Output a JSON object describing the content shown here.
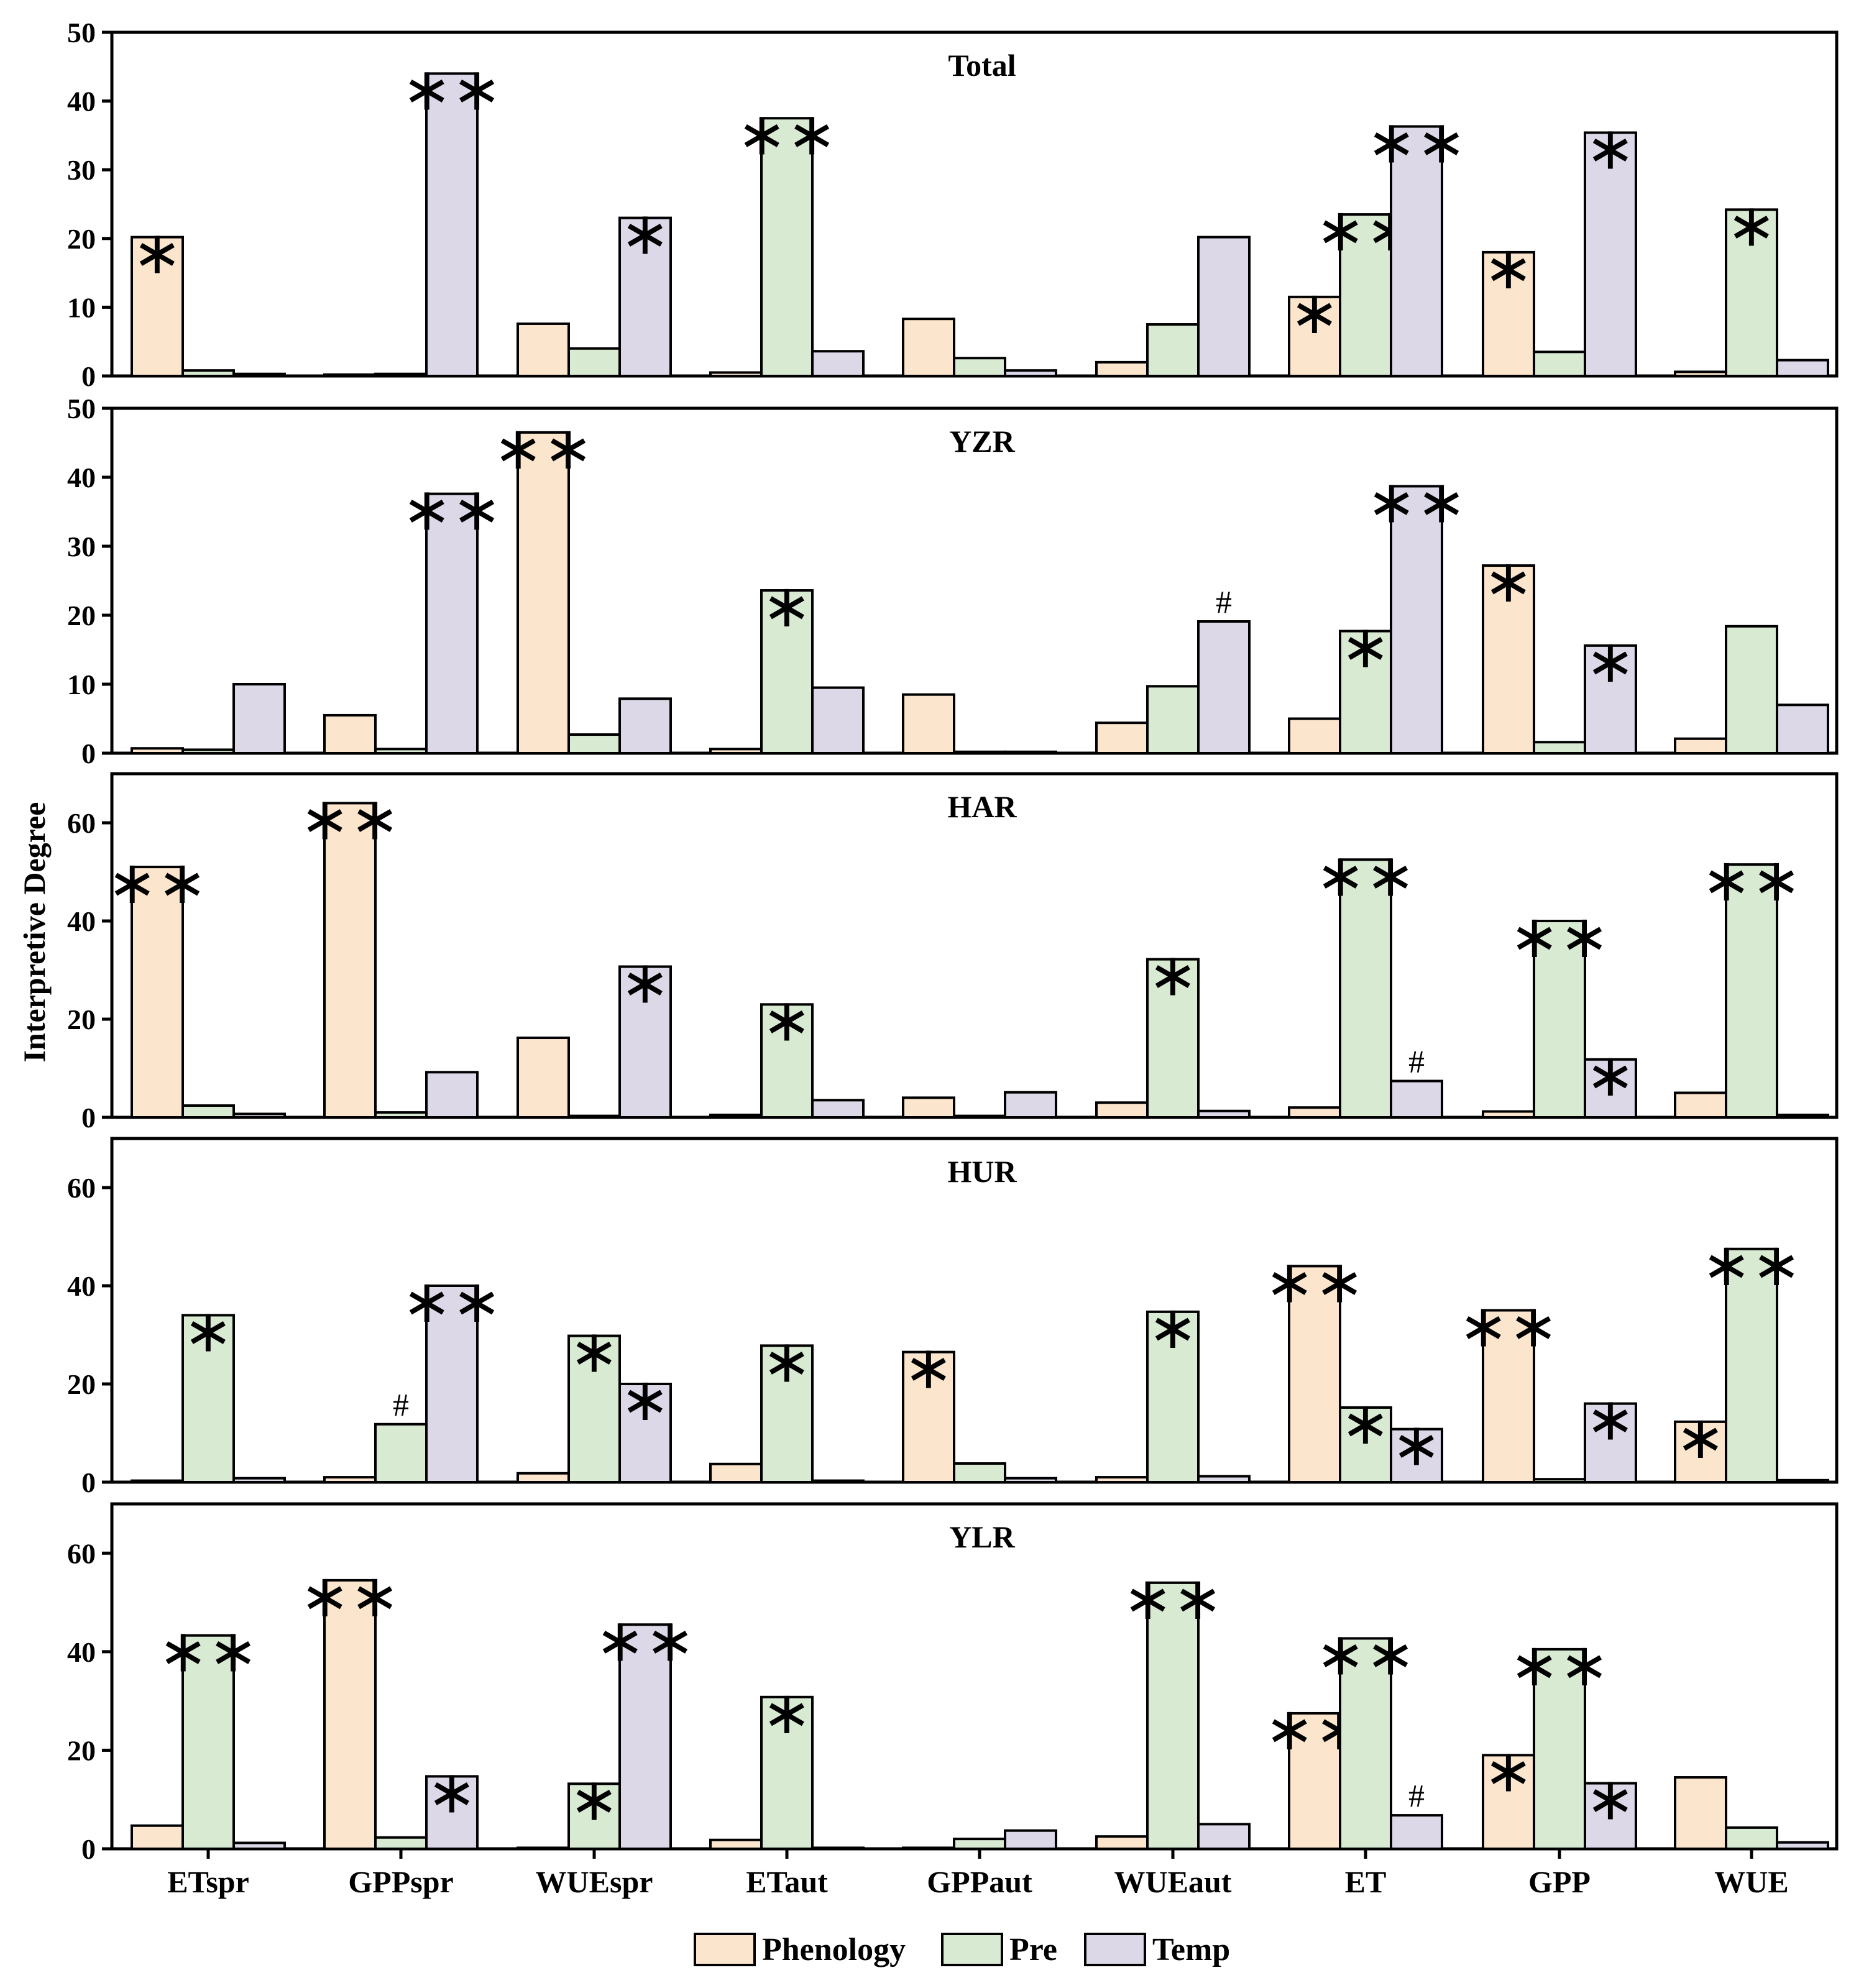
{
  "chart_data": {
    "type": "bar",
    "ylabel": "Interpretive Degree",
    "categories": [
      "ETspr",
      "GPPspr",
      "WUEspr",
      "ETaut",
      "GPPaut",
      "WUEaut",
      "ET",
      "GPP",
      "WUE"
    ],
    "series_names": [
      "Phenology",
      "Pre",
      "Temp"
    ],
    "colors": {
      "Phenology": "#FCE5CD",
      "Pre": "#D9EAD3",
      "Temp": "#DCD8E8"
    },
    "panels": [
      {
        "title": "Total",
        "ylim": [
          0,
          50
        ],
        "yticks": [
          0,
          10,
          20,
          30,
          40,
          50
        ],
        "series": [
          {
            "name": "Phenology",
            "values": [
              20.2,
              0.2,
              7.6,
              0.5,
              8.3,
              2.0,
              11.5,
              18.0,
              0.6
            ],
            "marks": [
              "*",
              "",
              "",
              "",
              "",
              "",
              "*",
              "*",
              ""
            ]
          },
          {
            "name": "Pre",
            "values": [
              0.8,
              0.3,
              4.0,
              37.5,
              2.6,
              7.5,
              23.5,
              3.5,
              24.2
            ],
            "marks": [
              "",
              "",
              "",
              "**",
              "",
              "",
              "**",
              "",
              "*"
            ]
          },
          {
            "name": "Temp",
            "values": [
              0.3,
              44.0,
              23.0,
              3.6,
              0.8,
              20.2,
              36.3,
              35.4,
              2.3
            ],
            "marks": [
              "",
              "**",
              "*",
              "",
              "",
              "",
              "**",
              "*",
              ""
            ]
          }
        ]
      },
      {
        "title": "YZR",
        "ylim": [
          0,
          50
        ],
        "yticks": [
          0,
          10,
          20,
          30,
          40,
          50
        ],
        "series": [
          {
            "name": "Phenology",
            "values": [
              0.7,
              5.5,
              46.5,
              0.6,
              8.5,
              4.4,
              5.0,
              27.2,
              2.1
            ],
            "marks": [
              "",
              "",
              "**",
              "",
              "",
              "",
              "",
              "*",
              ""
            ]
          },
          {
            "name": "Pre",
            "values": [
              0.5,
              0.6,
              2.7,
              23.6,
              0.2,
              9.7,
              17.7,
              1.6,
              18.4
            ],
            "marks": [
              "",
              "",
              "",
              "*",
              "",
              "",
              "*",
              "",
              ""
            ]
          },
          {
            "name": "Temp",
            "values": [
              10.0,
              37.6,
              7.9,
              9.5,
              0.2,
              19.1,
              38.7,
              15.6,
              7.0
            ],
            "marks": [
              "",
              "**",
              "",
              "",
              "",
              "#",
              "**",
              "*",
              ""
            ]
          }
        ]
      },
      {
        "title": "HAR",
        "ylim": [
          0,
          70
        ],
        "yticks": [
          0,
          20,
          40,
          60
        ],
        "series": [
          {
            "name": "Phenology",
            "values": [
              51.0,
              64.0,
              16.2,
              0.5,
              4.0,
              3.0,
              2.0,
              1.2,
              5.0
            ],
            "marks": [
              "**",
              "**",
              "",
              "",
              "",
              "",
              "",
              "",
              ""
            ]
          },
          {
            "name": "Pre",
            "values": [
              2.4,
              1.0,
              0.3,
              23.0,
              0.3,
              32.2,
              52.5,
              40.0,
              51.5
            ],
            "marks": [
              "",
              "",
              "",
              "*",
              "",
              "*",
              "**",
              "**",
              "**"
            ]
          },
          {
            "name": "Temp",
            "values": [
              0.7,
              9.2,
              30.7,
              3.5,
              5.1,
              1.3,
              7.4,
              11.8,
              0.5
            ],
            "marks": [
              "",
              "",
              "*",
              "",
              "",
              "",
              "#",
              "*",
              ""
            ]
          }
        ]
      },
      {
        "title": "HUR",
        "ylim": [
          0,
          70
        ],
        "yticks": [
          0,
          20,
          40,
          60
        ],
        "series": [
          {
            "name": "Phenology",
            "values": [
              0.3,
              1.0,
              1.8,
              3.7,
              26.5,
              1.0,
              44.0,
              35.0,
              12.3
            ],
            "marks": [
              "",
              "",
              "",
              "",
              "*",
              "",
              "**",
              "**",
              "*"
            ]
          },
          {
            "name": "Pre",
            "values": [
              34.0,
              11.8,
              29.8,
              27.8,
              3.8,
              34.7,
              15.2,
              0.6,
              47.5
            ],
            "marks": [
              "*",
              "#",
              "*",
              "*",
              "",
              "*",
              "*",
              "",
              "**"
            ]
          },
          {
            "name": "Temp",
            "values": [
              0.8,
              40.0,
              20.0,
              0.3,
              0.8,
              1.2,
              10.8,
              16.0,
              0.4
            ],
            "marks": [
              "",
              "**",
              "*",
              "",
              "",
              "",
              "*",
              "*",
              ""
            ]
          }
        ]
      },
      {
        "title": "YLR",
        "ylim": [
          0,
          70
        ],
        "yticks": [
          0,
          20,
          40,
          60
        ],
        "series": [
          {
            "name": "Phenology",
            "values": [
              4.7,
              54.5,
              0.2,
              1.8,
              0.2,
              2.5,
              27.5,
              19.0,
              14.5
            ],
            "marks": [
              "",
              "**",
              "",
              "",
              "",
              "",
              "**",
              "*",
              ""
            ]
          },
          {
            "name": "Pre",
            "values": [
              43.3,
              2.3,
              13.2,
              30.8,
              2.0,
              54.0,
              42.7,
              40.5,
              4.3
            ],
            "marks": [
              "**",
              "",
              "*",
              "*",
              "",
              "**",
              "**",
              "**",
              ""
            ]
          },
          {
            "name": "Temp",
            "values": [
              1.2,
              14.7,
              45.5,
              0.2,
              3.7,
              5.0,
              6.8,
              13.3,
              1.3
            ],
            "marks": [
              "",
              "*",
              "**",
              "",
              "",
              "",
              "#",
              "*",
              ""
            ]
          }
        ]
      }
    ]
  }
}
